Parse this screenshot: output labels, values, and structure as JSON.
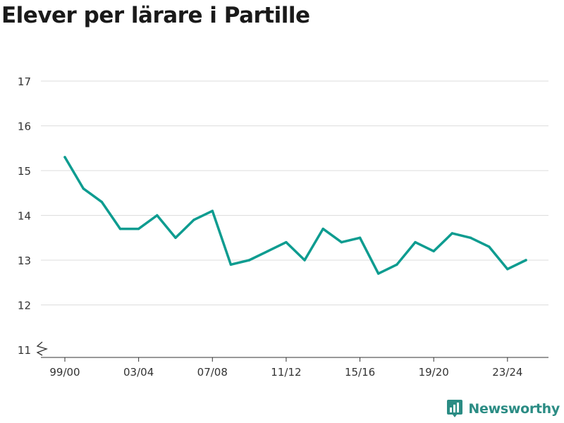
{
  "title": "Elever per lärare i Partille",
  "brand": {
    "name": "Newsworthy",
    "icon": "newsworthy-logo-icon"
  },
  "colors": {
    "line": "#0e9c90",
    "grid": "#dddddd",
    "brand": "#2b8c84"
  },
  "chart_data": {
    "type": "line",
    "title": "Elever per lärare i Partille",
    "xlabel": "",
    "ylabel": "",
    "ylim": [
      11,
      17
    ],
    "y_ticks": [
      11,
      12,
      13,
      14,
      15,
      16,
      17
    ],
    "y_axis_break": true,
    "grid": true,
    "x": [
      "99/00",
      "00/01",
      "01/02",
      "02/03",
      "03/04",
      "04/05",
      "05/06",
      "06/07",
      "07/08",
      "08/09",
      "09/10",
      "10/11",
      "11/12",
      "12/13",
      "13/14",
      "14/15",
      "15/16",
      "16/17",
      "17/18",
      "18/19",
      "19/20",
      "20/21",
      "21/22",
      "22/23",
      "23/24",
      "24/25"
    ],
    "x_tick_labels": [
      "99/00",
      "03/04",
      "07/08",
      "11/12",
      "15/16",
      "19/20",
      "23/24"
    ],
    "series": [
      {
        "values": [
          15.3,
          14.6,
          14.3,
          13.7,
          13.7,
          14.0,
          13.5,
          13.9,
          14.1,
          12.9,
          13.0,
          13.2,
          13.4,
          13.0,
          13.7,
          13.4,
          13.5,
          12.7,
          12.9,
          13.4,
          13.2,
          13.6,
          13.5,
          13.3,
          12.8,
          13.0
        ]
      }
    ]
  }
}
